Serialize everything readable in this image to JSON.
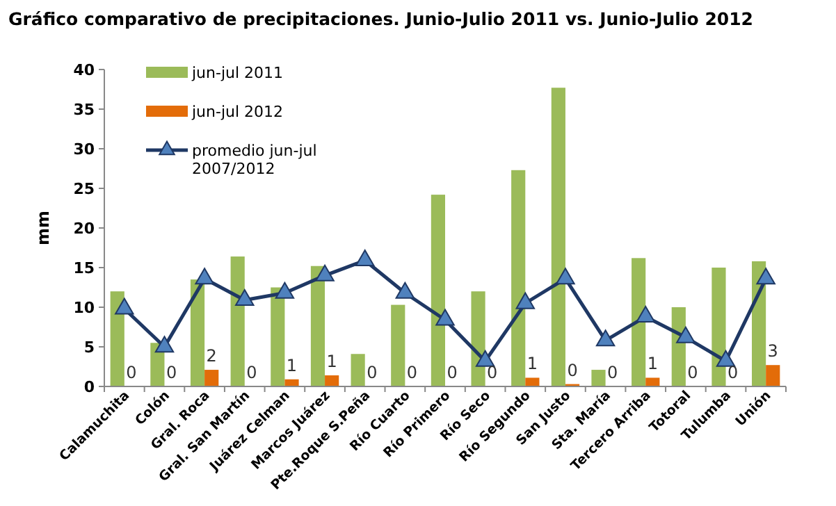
{
  "chart_data": {
    "type": "bar",
    "title": "Gráfico comparativo de precipitaciones. Junio-Julio 2011 vs. Junio-Julio 2012",
    "ylabel": "mm",
    "categories": [
      "Calamuchita",
      "Colón",
      "Gral. Roca",
      "Gral. San Martín",
      "Juárez Celman",
      "Marcos Juárez",
      "Pte.Roque S.Peña",
      "Río Cuarto",
      "Río Primero",
      "Río Seco",
      "Río Segundo",
      "San Justo",
      "Sta. María",
      "Tercero Arriba",
      "Totoral",
      "Tulumba",
      "Unión"
    ],
    "series": [
      {
        "name": "jun-jul 2011",
        "color": "#9bbb59",
        "values": [
          12,
          5.5,
          13.5,
          16.4,
          12.5,
          15.2,
          4.1,
          10.3,
          24.2,
          12,
          27.3,
          37.7,
          2.1,
          16.2,
          10,
          15,
          15.8
        ]
      },
      {
        "name": "jun-jul 2012",
        "color": "#e36c09",
        "values": [
          0,
          0,
          2.1,
          0,
          0.9,
          1.4,
          0,
          0,
          0,
          0,
          1.1,
          0.3,
          0,
          1.1,
          0,
          0,
          2.7
        ],
        "value_labels": [
          "0",
          "0",
          "2",
          "0",
          "1",
          "1",
          "0",
          "0",
          "0",
          "0",
          "1",
          "0",
          "0",
          "1",
          "0",
          "0",
          "3"
        ]
      },
      {
        "name": "promedio jun-jul 2007/2012",
        "type": "line",
        "color": "#1f3864",
        "marker": "triangle",
        "values": [
          9.8,
          5,
          13.6,
          10.9,
          11.8,
          14,
          15.9,
          11.8,
          8.4,
          3.2,
          10.5,
          13.6,
          5.8,
          8.8,
          6.2,
          3.2,
          13.6
        ]
      }
    ],
    "ylim": [
      0,
      40
    ],
    "yticks": [
      0,
      5,
      10,
      15,
      20,
      25,
      30,
      35,
      40
    ],
    "grid": false,
    "legend": "top left"
  }
}
